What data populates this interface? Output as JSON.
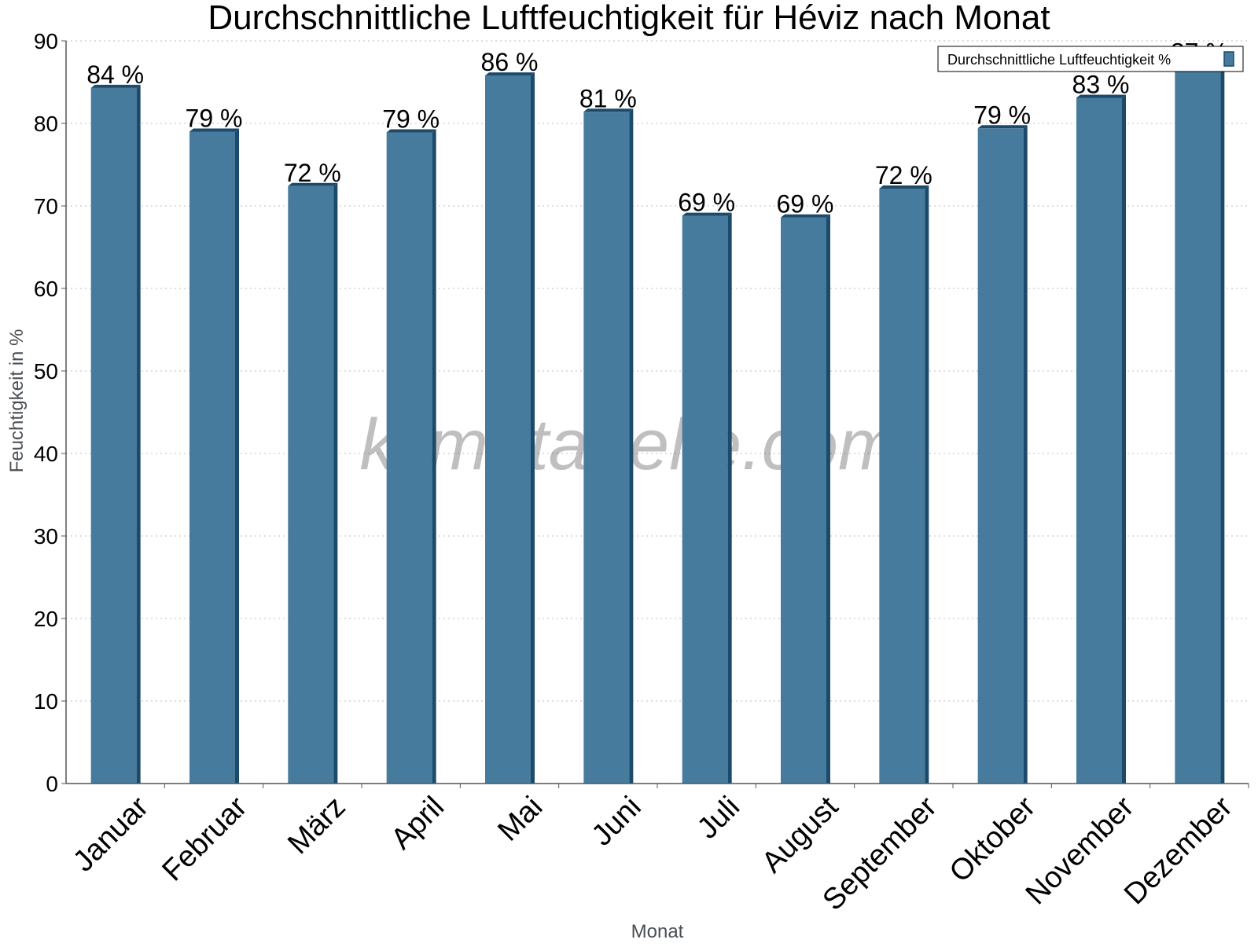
{
  "chart_data": {
    "type": "bar",
    "title": "Durchschnittliche Luftfeuchtigkeit für Héviz nach Monat",
    "xlabel": "Monat",
    "ylabel": "Feuchtigkeit in %",
    "categories": [
      "Januar",
      "Februar",
      "März",
      "April",
      "Mai",
      "Juni",
      "Juli",
      "August",
      "September",
      "Oktober",
      "November",
      "Dezember"
    ],
    "series": [
      {
        "name": "Durchschnittliche Luftfeuchtigkeit %",
        "values": [
          84.3,
          79.0,
          72.4,
          78.9,
          85.8,
          81.4,
          68.8,
          68.6,
          72.1,
          79.4,
          83.1,
          87.0
        ],
        "labels": [
          "84 %",
          "79 %",
          "72 %",
          "79 %",
          "86 %",
          "81 %",
          "69 %",
          "69 %",
          "72 %",
          "79 %",
          "83 %",
          "87 %"
        ],
        "color": "#467b9d",
        "edge_color": "#1c4a6b"
      }
    ],
    "ylim": [
      0,
      90
    ],
    "yticks": [
      0,
      10,
      20,
      30,
      40,
      50,
      60,
      70,
      80,
      90
    ],
    "grid": true,
    "legend_position": "top-right"
  },
  "watermark": "klimatabelle.com"
}
